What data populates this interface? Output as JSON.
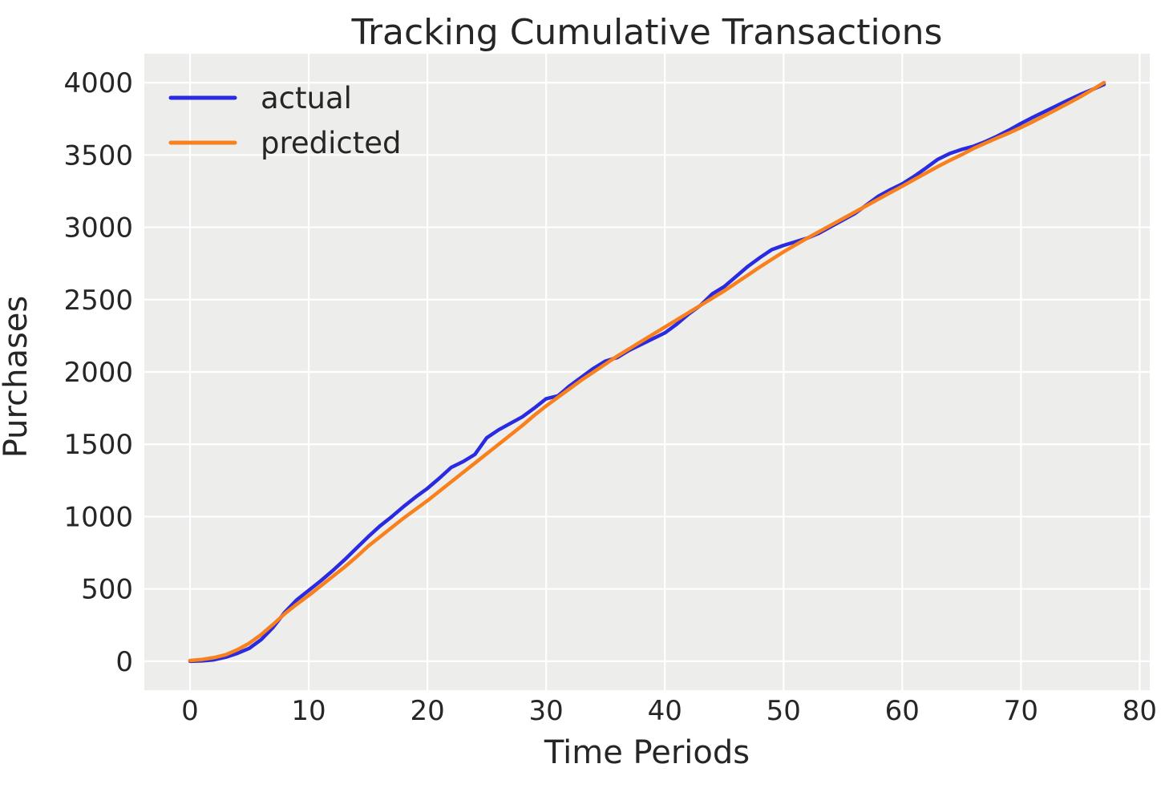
{
  "chart_data": {
    "type": "line",
    "title": "Tracking Cumulative Transactions",
    "xlabel": "Time Periods",
    "ylabel": "Purchases",
    "xlim": [
      -3.85,
      80.85
    ],
    "ylim": [
      -200,
      4200
    ],
    "xticks": [
      0,
      10,
      20,
      30,
      40,
      50,
      60,
      70,
      80
    ],
    "yticks": [
      0,
      500,
      1000,
      1500,
      2000,
      2500,
      3000,
      3500,
      4000
    ],
    "grid": true,
    "legend_position": "upper left",
    "plot_background": "#ededec",
    "grid_color": "#ffffff",
    "text_color": "#262626",
    "x": [
      0,
      1,
      2,
      3,
      4,
      5,
      6,
      7,
      8,
      9,
      10,
      11,
      12,
      13,
      14,
      15,
      16,
      17,
      18,
      19,
      20,
      21,
      22,
      23,
      24,
      25,
      26,
      27,
      28,
      29,
      30,
      31,
      32,
      33,
      34,
      35,
      36,
      37,
      38,
      39,
      40,
      41,
      42,
      43,
      44,
      45,
      46,
      47,
      48,
      49,
      50,
      51,
      52,
      53,
      54,
      55,
      56,
      57,
      58,
      59,
      60,
      61,
      62,
      63,
      64,
      65,
      66,
      67,
      68,
      69,
      70,
      71,
      72,
      73,
      74,
      75,
      76,
      77
    ],
    "series": [
      {
        "name": "actual",
        "color": "#2a2ae0",
        "values": [
          0,
          3,
          10,
          28,
          55,
          90,
          150,
          235,
          340,
          425,
          490,
          555,
          625,
          700,
          780,
          860,
          935,
          1000,
          1070,
          1135,
          1195,
          1265,
          1340,
          1380,
          1430,
          1545,
          1600,
          1645,
          1690,
          1750,
          1815,
          1835,
          1905,
          1965,
          2025,
          2075,
          2100,
          2150,
          2190,
          2230,
          2270,
          2330,
          2400,
          2460,
          2540,
          2590,
          2660,
          2730,
          2790,
          2845,
          2875,
          2900,
          2925,
          2960,
          3005,
          3050,
          3095,
          3155,
          3215,
          3260,
          3300,
          3352,
          3410,
          3470,
          3510,
          3538,
          3560,
          3592,
          3630,
          3672,
          3718,
          3760,
          3800,
          3840,
          3880,
          3918,
          3952,
          3988
        ]
      },
      {
        "name": "predicted",
        "color": "#f8801d",
        "values": [
          5,
          12,
          25,
          45,
          80,
          125,
          185,
          255,
          330,
          395,
          455,
          520,
          585,
          650,
          720,
          795,
          860,
          925,
          990,
          1050,
          1110,
          1175,
          1240,
          1305,
          1370,
          1435,
          1500,
          1565,
          1630,
          1700,
          1765,
          1825,
          1885,
          1945,
          2000,
          2055,
          2110,
          2160,
          2210,
          2260,
          2310,
          2360,
          2410,
          2460,
          2510,
          2560,
          2615,
          2670,
          2725,
          2778,
          2830,
          2878,
          2925,
          2970,
          3015,
          3060,
          3105,
          3150,
          3195,
          3240,
          3284,
          3330,
          3375,
          3420,
          3462,
          3502,
          3545,
          3582,
          3618,
          3652,
          3690,
          3730,
          3772,
          3815,
          3858,
          3902,
          3950,
          4000
        ]
      }
    ]
  }
}
